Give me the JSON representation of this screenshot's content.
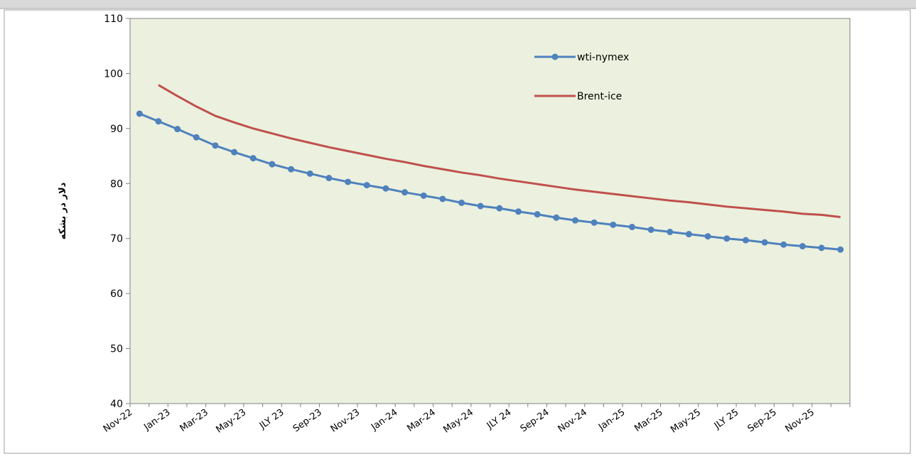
{
  "header_strip": {
    "background": "#d9d9d9",
    "text_color": "#555555"
  },
  "chart_data": {
    "type": "line",
    "title": "",
    "xlabel": "",
    "ylabel": "دلار در بشکه",
    "ylim": [
      40,
      110
    ],
    "yticks": [
      40,
      50,
      60,
      70,
      80,
      90,
      100,
      110
    ],
    "grid": false,
    "legend_position": "top-right",
    "plot_background": "#ebf1de",
    "categories": [
      "Nov-22",
      "Dec-22",
      "Jan-23",
      "Feb-23",
      "Mar-23",
      "Apr-23",
      "May-23",
      "Jun-23",
      "JLY 23",
      "Aug-23",
      "Sep-23",
      "Oct-23",
      "Nov-23",
      "Dec-23",
      "Jan-24",
      "Feb-24",
      "Mar-24",
      "Apr-24",
      "May-24",
      "Jun-24",
      "JLY 24",
      "Aug-24",
      "Sep-24",
      "Oct-24",
      "Nov-24",
      "Dec-24",
      "Jan-25",
      "Feb-25",
      "Mar-25",
      "Apr-25",
      "May-25",
      "Jun-25",
      "JLY 25",
      "Aug-25",
      "Sep-25",
      "Oct-25",
      "Nov-25",
      "Dec-25"
    ],
    "x_tick_labels": [
      "Nov-22",
      "Jan-23",
      "Mar-23",
      "May-23",
      "JLY 23",
      "Sep-23",
      "Nov-23",
      "Jan-24",
      "Mar-24",
      "May-24",
      "JLY 24",
      "Sep-24",
      "Nov-24",
      "Jan-25",
      "Mar-25",
      "May-25",
      "JLY 25",
      "Sep-25",
      "Nov-25"
    ],
    "series": [
      {
        "name": "wti-nymex",
        "color": "#4f81bd",
        "marker": "circle",
        "values": [
          92.7,
          91.3,
          89.9,
          88.4,
          86.9,
          85.7,
          84.6,
          83.5,
          82.6,
          81.8,
          81.0,
          80.3,
          79.7,
          79.1,
          78.4,
          77.8,
          77.2,
          76.5,
          75.9,
          75.5,
          74.9,
          74.4,
          73.8,
          73.3,
          72.9,
          72.5,
          72.1,
          71.6,
          71.2,
          70.8,
          70.4,
          70.0,
          69.7,
          69.3,
          68.9,
          68.6,
          68.3,
          68.0
        ]
      },
      {
        "name": "Brent-ice",
        "color": "#c0504d",
        "marker": "none",
        "values": [
          null,
          97.9,
          95.9,
          94.0,
          92.3,
          91.1,
          90.0,
          89.1,
          88.2,
          87.4,
          86.6,
          85.9,
          85.2,
          84.5,
          83.9,
          83.2,
          82.6,
          82.0,
          81.5,
          80.9,
          80.4,
          79.9,
          79.4,
          78.9,
          78.5,
          78.1,
          77.7,
          77.3,
          76.9,
          76.6,
          76.2,
          75.8,
          75.5,
          75.2,
          74.9,
          74.5,
          74.3,
          73.9
        ]
      }
    ]
  }
}
